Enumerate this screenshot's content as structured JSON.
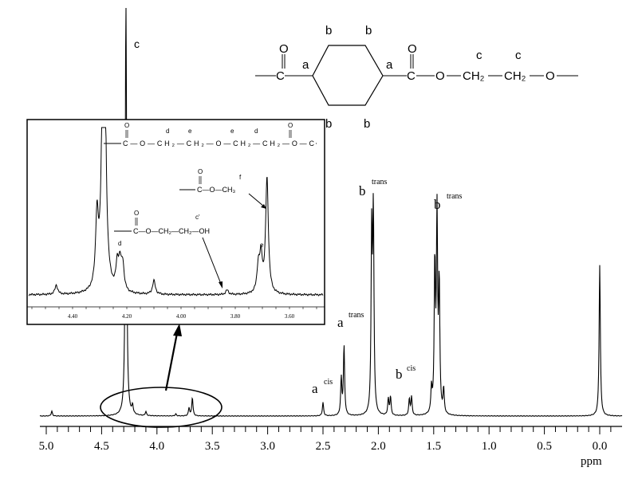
{
  "chart_data": {
    "type": "line",
    "xlabel": "ppm",
    "xlim": [
      5.06,
      -0.2
    ],
    "x_reversed": true,
    "x_ticks": [
      "5.0",
      "4.5",
      "4.0",
      "3.5",
      "3.0",
      "2.5",
      "2.0",
      "1.5",
      "1.0",
      "0.5",
      "0.0"
    ],
    "grid": false,
    "line_color": "#000000",
    "peaks": [
      {
        "ppm": 4.95,
        "intensity": 1.2
      },
      {
        "ppm": 4.28,
        "intensity": 110
      },
      {
        "ppm": 4.22,
        "intensity": 2
      },
      {
        "ppm": 4.1,
        "intensity": 1
      },
      {
        "ppm": 3.83,
        "intensity": 0.5
      },
      {
        "ppm": 3.71,
        "intensity": 2
      },
      {
        "ppm": 3.68,
        "intensity": 4.5
      },
      {
        "ppm": 2.5,
        "intensity": 3.3
      },
      {
        "ppm": 2.335,
        "intensity": 9
      },
      {
        "ppm": 2.31,
        "intensity": 17
      },
      {
        "ppm": 2.06,
        "intensity": 44
      },
      {
        "ppm": 2.045,
        "intensity": 48
      },
      {
        "ppm": 1.91,
        "intensity": 4
      },
      {
        "ppm": 1.89,
        "intensity": 4.5
      },
      {
        "ppm": 1.72,
        "intensity": 4
      },
      {
        "ppm": 1.7,
        "intensity": 4.5
      },
      {
        "ppm": 1.52,
        "intensity": 6
      },
      {
        "ppm": 1.49,
        "intensity": 36
      },
      {
        "ppm": 1.47,
        "intensity": 48
      },
      {
        "ppm": 1.45,
        "intensity": 31
      },
      {
        "ppm": 1.41,
        "intensity": 6
      },
      {
        "ppm": 0.0,
        "intensity": 37
      }
    ],
    "peak_labels": [
      {
        "letter": "c",
        "sup": ""
      },
      {
        "letter": "b",
        "sup": "trans"
      },
      {
        "letter": "b",
        "sup": "trans"
      },
      {
        "letter": "a",
        "sup": "trans"
      },
      {
        "letter": "b",
        "sup": "cis"
      },
      {
        "letter": "a",
        "sup": "cis"
      }
    ],
    "inset": {
      "xlim": [
        4.568,
        3.47
      ],
      "x_ticks": [
        "4.40",
        "4.20",
        "4.00",
        "3.80",
        "3.60"
      ],
      "peaks": [
        {
          "ppm": 4.46,
          "intensity": 8
        },
        {
          "ppm": 4.285,
          "intensity": 400
        },
        {
          "ppm": 4.31,
          "intensity": 60
        },
        {
          "ppm": 4.235,
          "intensity": 22
        },
        {
          "ppm": 4.225,
          "intensity": 22
        },
        {
          "ppm": 4.215,
          "intensity": 22
        },
        {
          "ppm": 4.1,
          "intensity": 12
        },
        {
          "ppm": 3.83,
          "intensity": 4
        },
        {
          "ppm": 3.715,
          "intensity": 22
        },
        {
          "ppm": 3.705,
          "intensity": 30
        },
        {
          "ppm": 3.683,
          "intensity": 100
        }
      ],
      "peak_labels": {
        "d": "d",
        "e": "e",
        "f": "f",
        "c_prime": "c'"
      }
    }
  },
  "structures": {
    "main": {
      "O1": "O",
      "C1": "C",
      "a1": "a",
      "a2": "a",
      "C2": "C",
      "O2": "O",
      "O3": "O",
      "CH2a": "CH₂",
      "CH2b": "CH₂",
      "O4": "O",
      "c1": "c",
      "c2": "c",
      "b1": "b",
      "b2": "b",
      "b3": "b",
      "b4": "b"
    },
    "inset_chain": {
      "text": "C—O—CH₂—CH₂—O—CH₂—CH₂—O—C",
      "O_left": "O",
      "O_right": "O",
      "d1": "d",
      "e1": "e",
      "e2": "e",
      "d2": "d"
    },
    "methyl_ester": {
      "text": "C—O—CH₃",
      "O": "O"
    },
    "hydroxy_ester": {
      "text": "C—O—CH₂—CH₂—OH",
      "O": "O"
    }
  }
}
